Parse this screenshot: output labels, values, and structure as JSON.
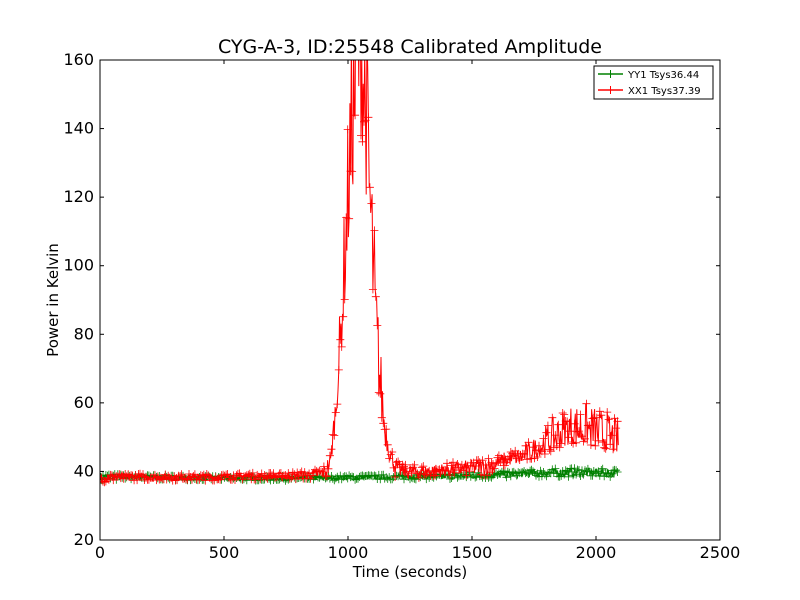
{
  "chart_data": {
    "type": "line",
    "title": "CYG-A-3, ID:25548 Calibrated Amplitude",
    "xlabel": "Time (seconds)",
    "ylabel": "Power in Kelvin",
    "xlim": [
      0,
      2500
    ],
    "ylim": [
      20,
      160
    ],
    "xticks": [
      0,
      500,
      1000,
      1500,
      2000,
      2500
    ],
    "yticks": [
      20,
      40,
      60,
      80,
      100,
      120,
      140,
      160
    ],
    "xtick_labels": [
      "0",
      "500",
      "1000",
      "1500",
      "2000",
      "2500"
    ],
    "ytick_labels": [
      "20",
      "40",
      "60",
      "80",
      "100",
      "120",
      "140",
      "160"
    ],
    "grid": false,
    "legend_position": "top-right",
    "marker": "+",
    "series": [
      {
        "name": "YY1 Tsys36.44",
        "color": "#008000",
        "x": [
          0,
          100,
          200,
          300,
          400,
          500,
          600,
          700,
          800,
          900,
          1000,
          1100,
          1200,
          1300,
          1400,
          1500,
          1600,
          1700,
          1800,
          1900,
          2000,
          2090
        ],
        "y": [
          38.2,
          38.4,
          38.3,
          38.2,
          38.1,
          38.0,
          38.0,
          38.0,
          38.0,
          38.1,
          38.2,
          38.3,
          38.4,
          38.5,
          38.6,
          38.8,
          39.0,
          39.3,
          39.6,
          39.7,
          39.6,
          39.4
        ],
        "spread": [
          1.6,
          0.7,
          0.7,
          0.7,
          0.7,
          0.7,
          0.7,
          0.7,
          0.7,
          0.7,
          0.7,
          0.7,
          0.8,
          0.8,
          0.9,
          1.0,
          1.0,
          1.1,
          1.2,
          1.3,
          1.3,
          1.2
        ]
      },
      {
        "name": "XX1 Tsys37.39",
        "color": "#ff0000",
        "x": [
          0,
          100,
          200,
          300,
          400,
          500,
          600,
          700,
          800,
          850,
          900,
          930,
          950,
          970,
          990,
          1010,
          1030,
          1045,
          1060,
          1075,
          1090,
          1110,
          1130,
          1150,
          1170,
          1190,
          1220,
          1300,
          1400,
          1500,
          1600,
          1700,
          1750,
          1800,
          1850,
          1900,
          1950,
          2000,
          2050,
          2090
        ],
        "y": [
          38.3,
          38.4,
          38.4,
          38.3,
          38.3,
          38.4,
          38.6,
          38.7,
          38.8,
          39.0,
          39.5,
          42.0,
          56.0,
          75.0,
          100.0,
          125.0,
          145.0,
          155.0,
          148.0,
          130.0,
          110.0,
          80.0,
          62.0,
          50.0,
          44.0,
          41.0,
          40.0,
          40.0,
          40.5,
          41.0,
          42.0,
          43.5,
          45.0,
          47.0,
          49.0,
          50.5,
          50.5,
          49.5,
          48.5,
          47.0
        ],
        "spread": [
          1.8,
          1.0,
          1.0,
          1.0,
          1.0,
          1.0,
          1.0,
          1.0,
          1.2,
          1.4,
          2.0,
          4.0,
          9.0,
          16.0,
          28.0,
          38.0,
          52.0,
          56.0,
          52.0,
          44.0,
          36.0,
          26.0,
          16.0,
          10.0,
          5.0,
          3.0,
          2.0,
          2.0,
          2.0,
          2.5,
          3.0,
          4.0,
          5.0,
          7.0,
          8.5,
          9.5,
          10.0,
          9.5,
          9.0,
          8.0
        ]
      }
    ]
  }
}
